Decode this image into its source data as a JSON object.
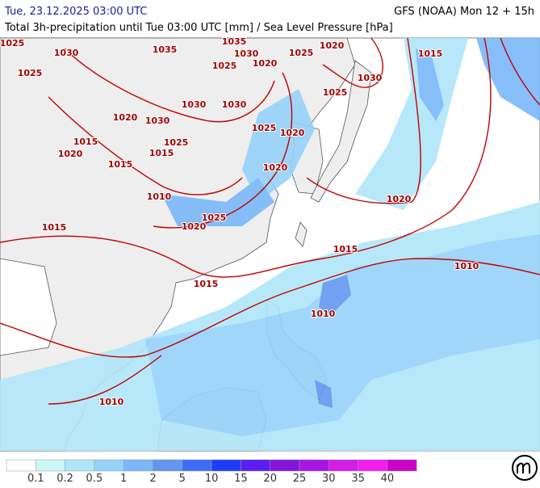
{
  "header": {
    "date": "Tue, 23.12.2025 03:00 UTC",
    "model": "GFS (NOAA) Mon 12 + 15h",
    "subtitle": "Total 3h-precipitation until Tue 03:00 UTC [mm] / Sea Level Pressure [hPa]"
  },
  "isobar_labels": [
    "1025",
    "1030",
    "1035",
    "1035",
    "1030",
    "1025",
    "1020",
    "1020",
    "1025",
    "1025",
    "1030",
    "1025",
    "1030",
    "1030",
    "1020",
    "1030",
    "1025",
    "1020",
    "1015",
    "1025",
    "1015",
    "1020",
    "1015",
    "1020",
    "1010",
    "1025",
    "1020",
    "1020",
    "1015",
    "1015",
    "1010",
    "1015",
    "1010",
    "1010",
    "1015"
  ],
  "legend": {
    "thresholds": [
      "0.1",
      "0.2",
      "0.5",
      "1",
      "2",
      "5",
      "10",
      "15",
      "20",
      "25",
      "30",
      "35",
      "40"
    ],
    "colors": [
      "#ffffff",
      "#ccf7f7",
      "#b0e6fa",
      "#96d2fa",
      "#7ab8fa",
      "#6496f0",
      "#3c6ef5",
      "#1e3cf5",
      "#5a1ef0",
      "#8214dc",
      "#a814e6",
      "#d21ee6",
      "#f01ef0",
      "#c800c8"
    ]
  }
}
